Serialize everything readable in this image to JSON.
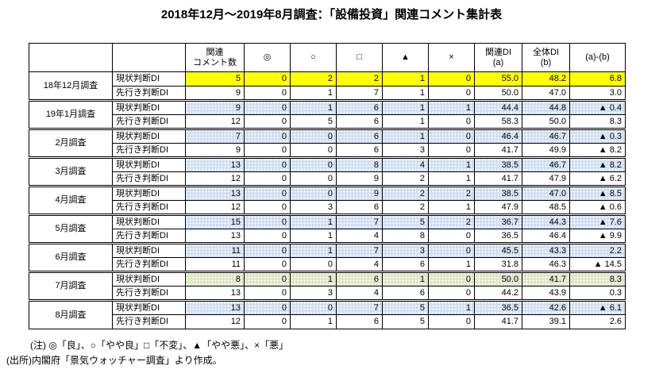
{
  "title": "2018年12月～2019年8月調査：「設備投資」関連コメント集計表",
  "colors": {
    "highlight_yellow": "#ffff00",
    "highlight_blue": "#ccdcf1",
    "highlight_green": "#d9e5c1",
    "border": "#000000",
    "text": "#000000"
  },
  "chart_data": {
    "type": "table",
    "columns": [
      {
        "id": "month",
        "lines": [
          ""
        ]
      },
      {
        "id": "di-type",
        "lines": [
          ""
        ]
      },
      {
        "id": "comment-count",
        "lines": [
          "関連",
          "コメント数"
        ]
      },
      {
        "id": "sym-excellent",
        "lines": [
          "◎"
        ]
      },
      {
        "id": "sym-good",
        "lines": [
          "○"
        ]
      },
      {
        "id": "sym-unchanged",
        "lines": [
          "□"
        ]
      },
      {
        "id": "sym-somewhat-bad",
        "lines": [
          "▲"
        ]
      },
      {
        "id": "sym-bad",
        "lines": [
          "×"
        ]
      },
      {
        "id": "related-di",
        "lines": [
          "関連DI",
          "(a)"
        ]
      },
      {
        "id": "overall-di",
        "lines": [
          "全体DI",
          "(b)"
        ]
      },
      {
        "id": "diff",
        "lines": [
          "(a)-(b)"
        ]
      }
    ],
    "groups": [
      {
        "month": "18年12月調査",
        "rows": [
          {
            "type": "現状判断DI",
            "highlight": "yellow",
            "values": [
              "5",
              "0",
              "2",
              "2",
              "1",
              "0",
              "55.0",
              "48.2",
              "6.8"
            ]
          },
          {
            "type": "先行き判断DI",
            "highlight": "none",
            "values": [
              "9",
              "0",
              "1",
              "7",
              "1",
              "0",
              "50.0",
              "47.0",
              "3.0"
            ]
          }
        ]
      },
      {
        "month": "19年1月調査",
        "rows": [
          {
            "type": "現状判断DI",
            "highlight": "blue",
            "values": [
              "9",
              "0",
              "1",
              "6",
              "1",
              "1",
              "44.4",
              "44.8",
              "▲ 0.4"
            ]
          },
          {
            "type": "先行き判断DI",
            "highlight": "none",
            "values": [
              "12",
              "0",
              "5",
              "6",
              "1",
              "0",
              "58.3",
              "50.0",
              "8.3"
            ]
          }
        ]
      },
      {
        "month": "2月調査",
        "rows": [
          {
            "type": "現状判断DI",
            "highlight": "blue",
            "values": [
              "7",
              "0",
              "0",
              "6",
              "1",
              "0",
              "46.4",
              "46.7",
              "▲ 0.3"
            ]
          },
          {
            "type": "先行き判断DI",
            "highlight": "none",
            "values": [
              "9",
              "0",
              "0",
              "6",
              "3",
              "0",
              "41.7",
              "49.9",
              "▲ 8.2"
            ]
          }
        ]
      },
      {
        "month": "3月調査",
        "rows": [
          {
            "type": "現状判断DI",
            "highlight": "blue",
            "values": [
              "13",
              "0",
              "0",
              "8",
              "4",
              "1",
              "38.5",
              "46.7",
              "▲ 8.2"
            ]
          },
          {
            "type": "先行き判断DI",
            "highlight": "none",
            "values": [
              "12",
              "0",
              "0",
              "9",
              "2",
              "1",
              "41.7",
              "47.9",
              "▲ 6.2"
            ]
          }
        ]
      },
      {
        "month": "4月調査",
        "rows": [
          {
            "type": "現状判断DI",
            "highlight": "blue",
            "values": [
              "13",
              "0",
              "0",
              "9",
              "2",
              "2",
              "38.5",
              "47.0",
              "▲ 8.5"
            ]
          },
          {
            "type": "先行き判断DI",
            "highlight": "none",
            "values": [
              "12",
              "0",
              "3",
              "6",
              "2",
              "1",
              "47.9",
              "48.5",
              "▲ 0.6"
            ]
          }
        ]
      },
      {
        "month": "5月調査",
        "rows": [
          {
            "type": "現状判断DI",
            "highlight": "blue",
            "values": [
              "15",
              "0",
              "1",
              "7",
              "5",
              "2",
              "36.7",
              "44.3",
              "▲ 7.6"
            ]
          },
          {
            "type": "先行き判断DI",
            "highlight": "none",
            "values": [
              "13",
              "0",
              "1",
              "4",
              "8",
              "0",
              "36.5",
              "46.4",
              "▲ 9.9"
            ]
          }
        ]
      },
      {
        "month": "6月調査",
        "rows": [
          {
            "type": "現状判断DI",
            "highlight": "blue",
            "values": [
              "11",
              "0",
              "1",
              "7",
              "3",
              "0",
              "45.5",
              "43.3",
              "2.2"
            ]
          },
          {
            "type": "先行き判断DI",
            "highlight": "none",
            "values": [
              "11",
              "0",
              "0",
              "4",
              "6",
              "1",
              "31.8",
              "46.3",
              "▲ 14.5"
            ]
          }
        ]
      },
      {
        "month": "7月調査",
        "rows": [
          {
            "type": "現状判断DI",
            "highlight": "green",
            "values": [
              "8",
              "0",
              "1",
              "6",
              "1",
              "0",
              "50.0",
              "41.7",
              "8.3"
            ]
          },
          {
            "type": "先行き判断DI",
            "highlight": "none",
            "values": [
              "13",
              "0",
              "3",
              "4",
              "6",
              "0",
              "44.2",
              "43.9",
              "0.3"
            ]
          }
        ]
      },
      {
        "month": "8月調査",
        "rows": [
          {
            "type": "現状判断DI",
            "highlight": "blue",
            "values": [
              "13",
              "0",
              "0",
              "7",
              "5",
              "1",
              "36.5",
              "42.6",
              "▲ 6.1"
            ]
          },
          {
            "type": "先行き判断DI",
            "highlight": "none",
            "values": [
              "12",
              "0",
              "1",
              "6",
              "5",
              "0",
              "41.7",
              "39.1",
              "2.6"
            ]
          }
        ]
      }
    ]
  },
  "notes": {
    "legend": "(注) ◎「良」、○「やや良」□「不変」、▲「やや悪」、×「悪」",
    "source": "(出所)内閣府「景気ウォッチャー調査」より作成。"
  }
}
